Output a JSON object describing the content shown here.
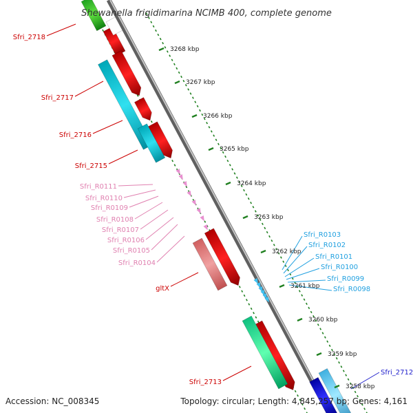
{
  "title": "Shewanella frigidimarina NCIMB 400, complete genome",
  "footer": {
    "accession": "Accession: NC_008345",
    "topology": "Topology: circular; Length: 4,845,257 bp; Genes: 4,161"
  },
  "ticks": [
    "3268 kbp",
    "3267 kbp",
    "3266 kbp",
    "3265 kbp",
    "3264 kbp",
    "3263 kbp",
    "3262 kbp",
    "3261 kbp",
    "3260 kbp",
    "3259 kbp",
    "3258 kbp"
  ],
  "labels": {
    "red_left": [
      "Sfri_2718",
      "Sfri_2717",
      "Sfri_2716",
      "Sfri_2715",
      "gltX",
      "Sfri_2713"
    ],
    "pink_left": [
      "Sfri_R0111",
      "Sfri_R0110",
      "Sfri_R0109",
      "Sfri_R0108",
      "Sfri_R0107",
      "Sfri_R0106",
      "Sfri_R0105",
      "Sfri_R0104"
    ],
    "cyan_right": [
      "Sfri_R0103",
      "Sfri_R0102",
      "Sfri_R0101",
      "Sfri_R0100",
      "Sfri_R0099",
      "Sfri_R0098"
    ],
    "blue_right": [
      "Sfri_2712"
    ]
  },
  "colors": {
    "cds": "#ff0000",
    "cds_dim": "#f08080",
    "trna": "#e890d0",
    "trna_cyan": "#40c0f0",
    "backbone": "#808080",
    "gc_track": "#208020",
    "label_red": "#cc0000",
    "label_pink": "#e080b0",
    "label_cyan": "#20a0e0",
    "label_blue": "#2020cc"
  }
}
